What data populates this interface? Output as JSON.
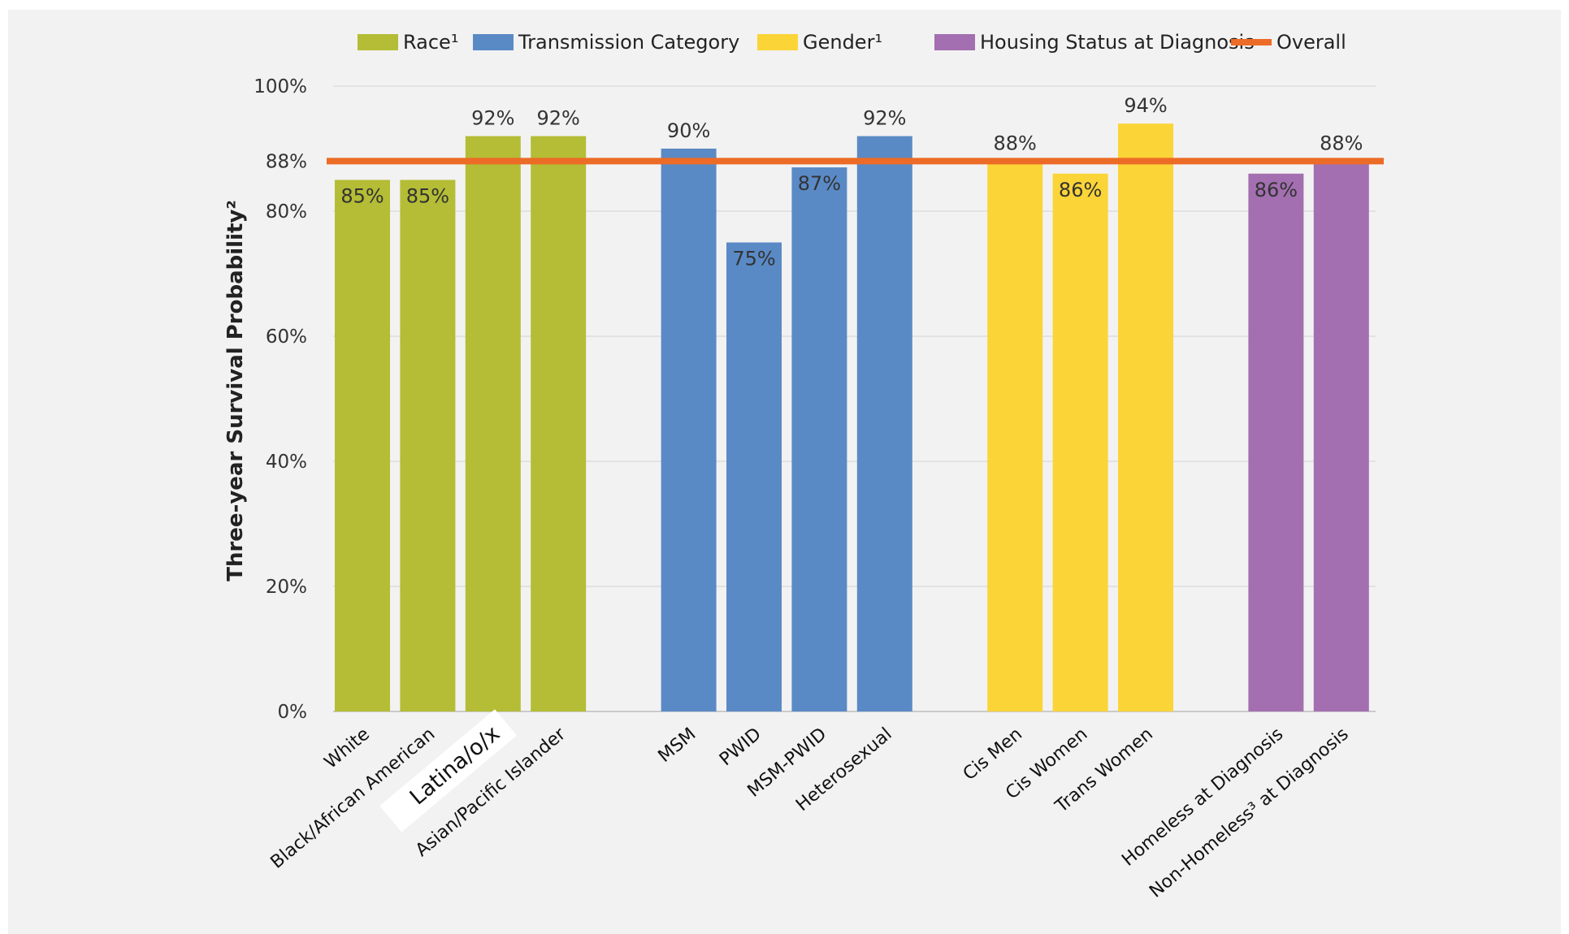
{
  "chart_data": {
    "type": "bar",
    "ylabel": "Three-year Survival Probability²",
    "ylim": [
      0,
      100
    ],
    "yticks": [
      "0%",
      "20%",
      "40%",
      "60%",
      "80%",
      "88%",
      "100%"
    ],
    "ytick_values": [
      0,
      20,
      40,
      60,
      80,
      88,
      100
    ],
    "grid": true,
    "legend_position": "top",
    "legend": [
      {
        "label": "Race¹",
        "color": "#b4bd35",
        "kind": "box"
      },
      {
        "label": "Transmission Category",
        "color": "#5a8ac6",
        "kind": "box"
      },
      {
        "label": "Gender¹",
        "color": "#fbd437",
        "kind": "box"
      },
      {
        "label": "Housing Status at Diagnosis",
        "color": "#a36fb0",
        "kind": "box"
      },
      {
        "label": "Overall",
        "color": "#ec6b26",
        "kind": "line"
      }
    ],
    "overall": {
      "name": "Overall",
      "value": 88,
      "color": "#ec6b26"
    },
    "groups": [
      {
        "name": "Race¹",
        "color": "#b4bd35",
        "categories": [
          "White",
          "Black/African American",
          "Latina/o/x",
          "Asian/Pacific Islander"
        ],
        "values": [
          85,
          85,
          92,
          92
        ],
        "labels": [
          "85%",
          "85%",
          "92%",
          "92%"
        ]
      },
      {
        "name": "Transmission Category",
        "color": "#5a8ac6",
        "categories": [
          "MSM",
          "PWID",
          "MSM-PWID",
          "Heterosexual"
        ],
        "values": [
          90,
          75,
          87,
          92
        ],
        "labels": [
          "90%",
          "75%",
          "87%",
          "92%"
        ]
      },
      {
        "name": "Gender¹",
        "color": "#fbd437",
        "categories": [
          "Cis Men",
          "Cis Women",
          "Trans Women"
        ],
        "values": [
          88,
          86,
          94
        ],
        "labels": [
          "88%",
          "86%",
          "94%"
        ]
      },
      {
        "name": "Housing Status at Diagnosis",
        "color": "#a36fb0",
        "categories": [
          "Homeless at Diagnosis",
          "Non-Homeless³ at Diagnosis"
        ],
        "values": [
          86,
          88
        ],
        "labels": [
          "86%",
          "88%"
        ]
      }
    ]
  }
}
